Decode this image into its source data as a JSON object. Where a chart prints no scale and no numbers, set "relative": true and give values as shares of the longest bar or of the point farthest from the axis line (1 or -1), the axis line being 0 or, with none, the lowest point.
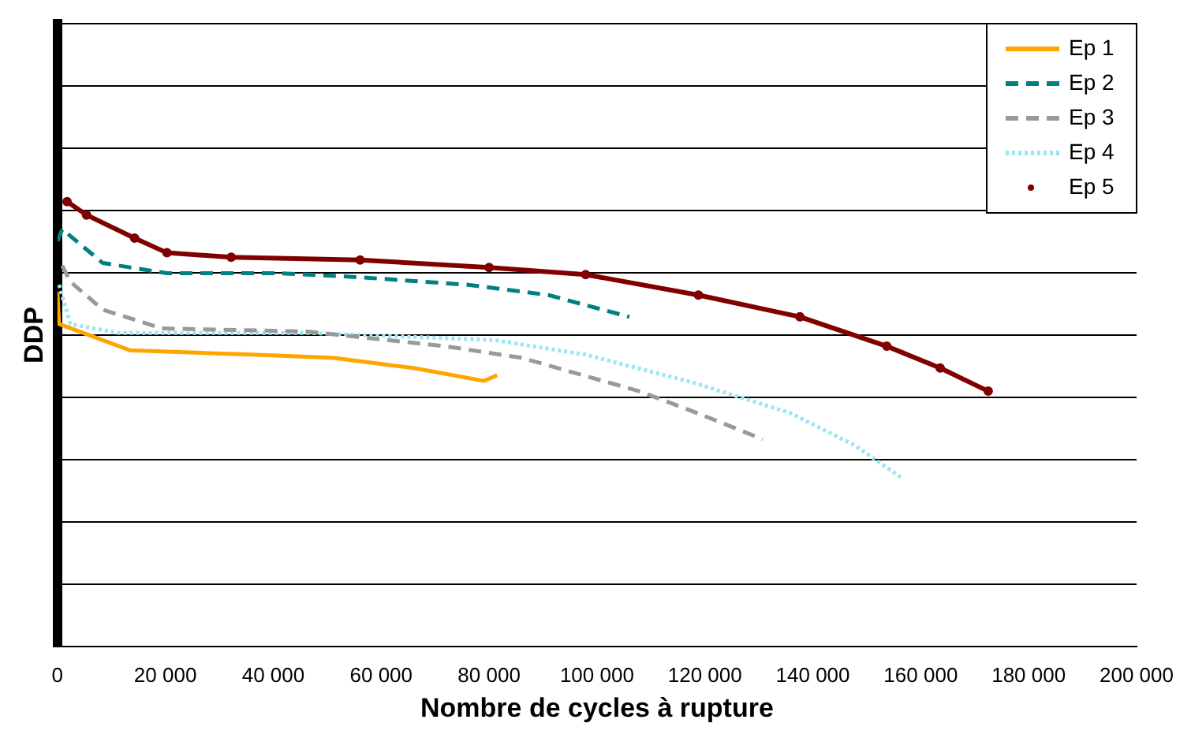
{
  "chart_data": {
    "type": "line",
    "xlabel": "Nombre de cycles à rupture",
    "ylabel": "DDP",
    "relative": true,
    "grid": "y",
    "legend": "top right",
    "tick_labels": "x",
    "xlim": [
      0,
      200000
    ],
    "xticks": [
      0,
      {
        "value": 20000,
        "label": "20 000"
      },
      {
        "value": 40000,
        "label": "40 000"
      },
      {
        "value": 60000,
        "label": "60 000"
      },
      {
        "value": 80000,
        "label": "80 000"
      },
      {
        "value": 100000,
        "label": "100 000"
      },
      {
        "value": 120000,
        "label": "120 000"
      },
      {
        "value": 140000,
        "label": "140 000"
      },
      {
        "value": 160000,
        "label": "160 000"
      },
      {
        "value": 180000,
        "label": "180 000"
      },
      {
        "value": 200000,
        "label": "200 000"
      }
    ],
    "series": [
      {
        "name": "Ep 1",
        "color": "#ffa500",
        "line_style": "solid",
        "marker": "none",
        "x": [
          0,
          300,
          6300,
          13400,
          36100,
          51000,
          66000,
          79100,
          81500
        ],
        "values": [
          0.797,
          0.725,
          0.698,
          0.666,
          0.656,
          0.649,
          0.626,
          0.597,
          0.61
        ]
      },
      {
        "name": "Ep 2",
        "color": "#008080",
        "line_style": "dashed",
        "marker": "none",
        "x": [
          0,
          900,
          8400,
          20300,
          41200,
          56100,
          76100,
          91000,
          106000
        ],
        "values": [
          0.911,
          0.938,
          0.862,
          0.839,
          0.839,
          0.83,
          0.813,
          0.79,
          0.741
        ]
      },
      {
        "name": "Ep 3",
        "color": "#999999",
        "line_style": "dashed",
        "marker": "none",
        "x": [
          900,
          2400,
          8400,
          19400,
          46300,
          71900,
          86000,
          107800,
          117900,
          130700
        ],
        "values": [
          0.856,
          0.82,
          0.757,
          0.715,
          0.708,
          0.675,
          0.649,
          0.574,
          0.528,
          0.466
        ]
      },
      {
        "name": "Ep 4",
        "color": "#99e6f5",
        "line_style": "dotted",
        "marker": "none",
        "x": [
          300,
          2400,
          11300,
          46300,
          80900,
          97900,
          117900,
          135800,
          147800,
          156700
        ],
        "values": [
          0.813,
          0.725,
          0.705,
          0.705,
          0.689,
          0.656,
          0.593,
          0.525,
          0.452,
          0.377
        ]
      },
      {
        "name": "Ep 5",
        "color": "#800000",
        "line_style": "solid",
        "marker": "circle",
        "x": [
          1790,
          5400,
          14300,
          20300,
          32200,
          56100,
          80000,
          97900,
          118800,
          137600,
          153700,
          163600,
          172500
        ],
        "values": [
          1,
          0.97,
          0.918,
          0.885,
          0.875,
          0.869,
          0.852,
          0.836,
          0.79,
          0.741,
          0.675,
          0.626,
          0.574
        ]
      }
    ]
  }
}
